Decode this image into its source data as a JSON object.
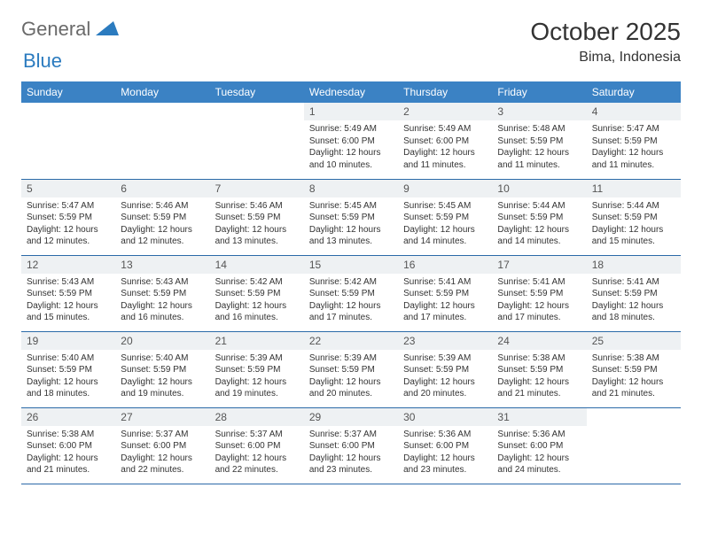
{
  "logo": {
    "text1": "General",
    "text2": "Blue"
  },
  "title": "October 2025",
  "location": "Bima, Indonesia",
  "header_bg": "#3b82c4",
  "daynum_bg": "#eef1f3",
  "border_color": "#2b6aa8",
  "weekdays": [
    "Sunday",
    "Monday",
    "Tuesday",
    "Wednesday",
    "Thursday",
    "Friday",
    "Saturday"
  ],
  "weeks": [
    [
      null,
      null,
      null,
      {
        "n": "1",
        "sr": "5:49 AM",
        "ss": "6:00 PM",
        "dl": "12 hours and 10 minutes."
      },
      {
        "n": "2",
        "sr": "5:49 AM",
        "ss": "6:00 PM",
        "dl": "12 hours and 11 minutes."
      },
      {
        "n": "3",
        "sr": "5:48 AM",
        "ss": "5:59 PM",
        "dl": "12 hours and 11 minutes."
      },
      {
        "n": "4",
        "sr": "5:47 AM",
        "ss": "5:59 PM",
        "dl": "12 hours and 11 minutes."
      }
    ],
    [
      {
        "n": "5",
        "sr": "5:47 AM",
        "ss": "5:59 PM",
        "dl": "12 hours and 12 minutes."
      },
      {
        "n": "6",
        "sr": "5:46 AM",
        "ss": "5:59 PM",
        "dl": "12 hours and 12 minutes."
      },
      {
        "n": "7",
        "sr": "5:46 AM",
        "ss": "5:59 PM",
        "dl": "12 hours and 13 minutes."
      },
      {
        "n": "8",
        "sr": "5:45 AM",
        "ss": "5:59 PM",
        "dl": "12 hours and 13 minutes."
      },
      {
        "n": "9",
        "sr": "5:45 AM",
        "ss": "5:59 PM",
        "dl": "12 hours and 14 minutes."
      },
      {
        "n": "10",
        "sr": "5:44 AM",
        "ss": "5:59 PM",
        "dl": "12 hours and 14 minutes."
      },
      {
        "n": "11",
        "sr": "5:44 AM",
        "ss": "5:59 PM",
        "dl": "12 hours and 15 minutes."
      }
    ],
    [
      {
        "n": "12",
        "sr": "5:43 AM",
        "ss": "5:59 PM",
        "dl": "12 hours and 15 minutes."
      },
      {
        "n": "13",
        "sr": "5:43 AM",
        "ss": "5:59 PM",
        "dl": "12 hours and 16 minutes."
      },
      {
        "n": "14",
        "sr": "5:42 AM",
        "ss": "5:59 PM",
        "dl": "12 hours and 16 minutes."
      },
      {
        "n": "15",
        "sr": "5:42 AM",
        "ss": "5:59 PM",
        "dl": "12 hours and 17 minutes."
      },
      {
        "n": "16",
        "sr": "5:41 AM",
        "ss": "5:59 PM",
        "dl": "12 hours and 17 minutes."
      },
      {
        "n": "17",
        "sr": "5:41 AM",
        "ss": "5:59 PM",
        "dl": "12 hours and 17 minutes."
      },
      {
        "n": "18",
        "sr": "5:41 AM",
        "ss": "5:59 PM",
        "dl": "12 hours and 18 minutes."
      }
    ],
    [
      {
        "n": "19",
        "sr": "5:40 AM",
        "ss": "5:59 PM",
        "dl": "12 hours and 18 minutes."
      },
      {
        "n": "20",
        "sr": "5:40 AM",
        "ss": "5:59 PM",
        "dl": "12 hours and 19 minutes."
      },
      {
        "n": "21",
        "sr": "5:39 AM",
        "ss": "5:59 PM",
        "dl": "12 hours and 19 minutes."
      },
      {
        "n": "22",
        "sr": "5:39 AM",
        "ss": "5:59 PM",
        "dl": "12 hours and 20 minutes."
      },
      {
        "n": "23",
        "sr": "5:39 AM",
        "ss": "5:59 PM",
        "dl": "12 hours and 20 minutes."
      },
      {
        "n": "24",
        "sr": "5:38 AM",
        "ss": "5:59 PM",
        "dl": "12 hours and 21 minutes."
      },
      {
        "n": "25",
        "sr": "5:38 AM",
        "ss": "5:59 PM",
        "dl": "12 hours and 21 minutes."
      }
    ],
    [
      {
        "n": "26",
        "sr": "5:38 AM",
        "ss": "6:00 PM",
        "dl": "12 hours and 21 minutes."
      },
      {
        "n": "27",
        "sr": "5:37 AM",
        "ss": "6:00 PM",
        "dl": "12 hours and 22 minutes."
      },
      {
        "n": "28",
        "sr": "5:37 AM",
        "ss": "6:00 PM",
        "dl": "12 hours and 22 minutes."
      },
      {
        "n": "29",
        "sr": "5:37 AM",
        "ss": "6:00 PM",
        "dl": "12 hours and 23 minutes."
      },
      {
        "n": "30",
        "sr": "5:36 AM",
        "ss": "6:00 PM",
        "dl": "12 hours and 23 minutes."
      },
      {
        "n": "31",
        "sr": "5:36 AM",
        "ss": "6:00 PM",
        "dl": "12 hours and 24 minutes."
      },
      null
    ]
  ],
  "labels": {
    "sunrise": "Sunrise:",
    "sunset": "Sunset:",
    "daylight": "Daylight:"
  }
}
